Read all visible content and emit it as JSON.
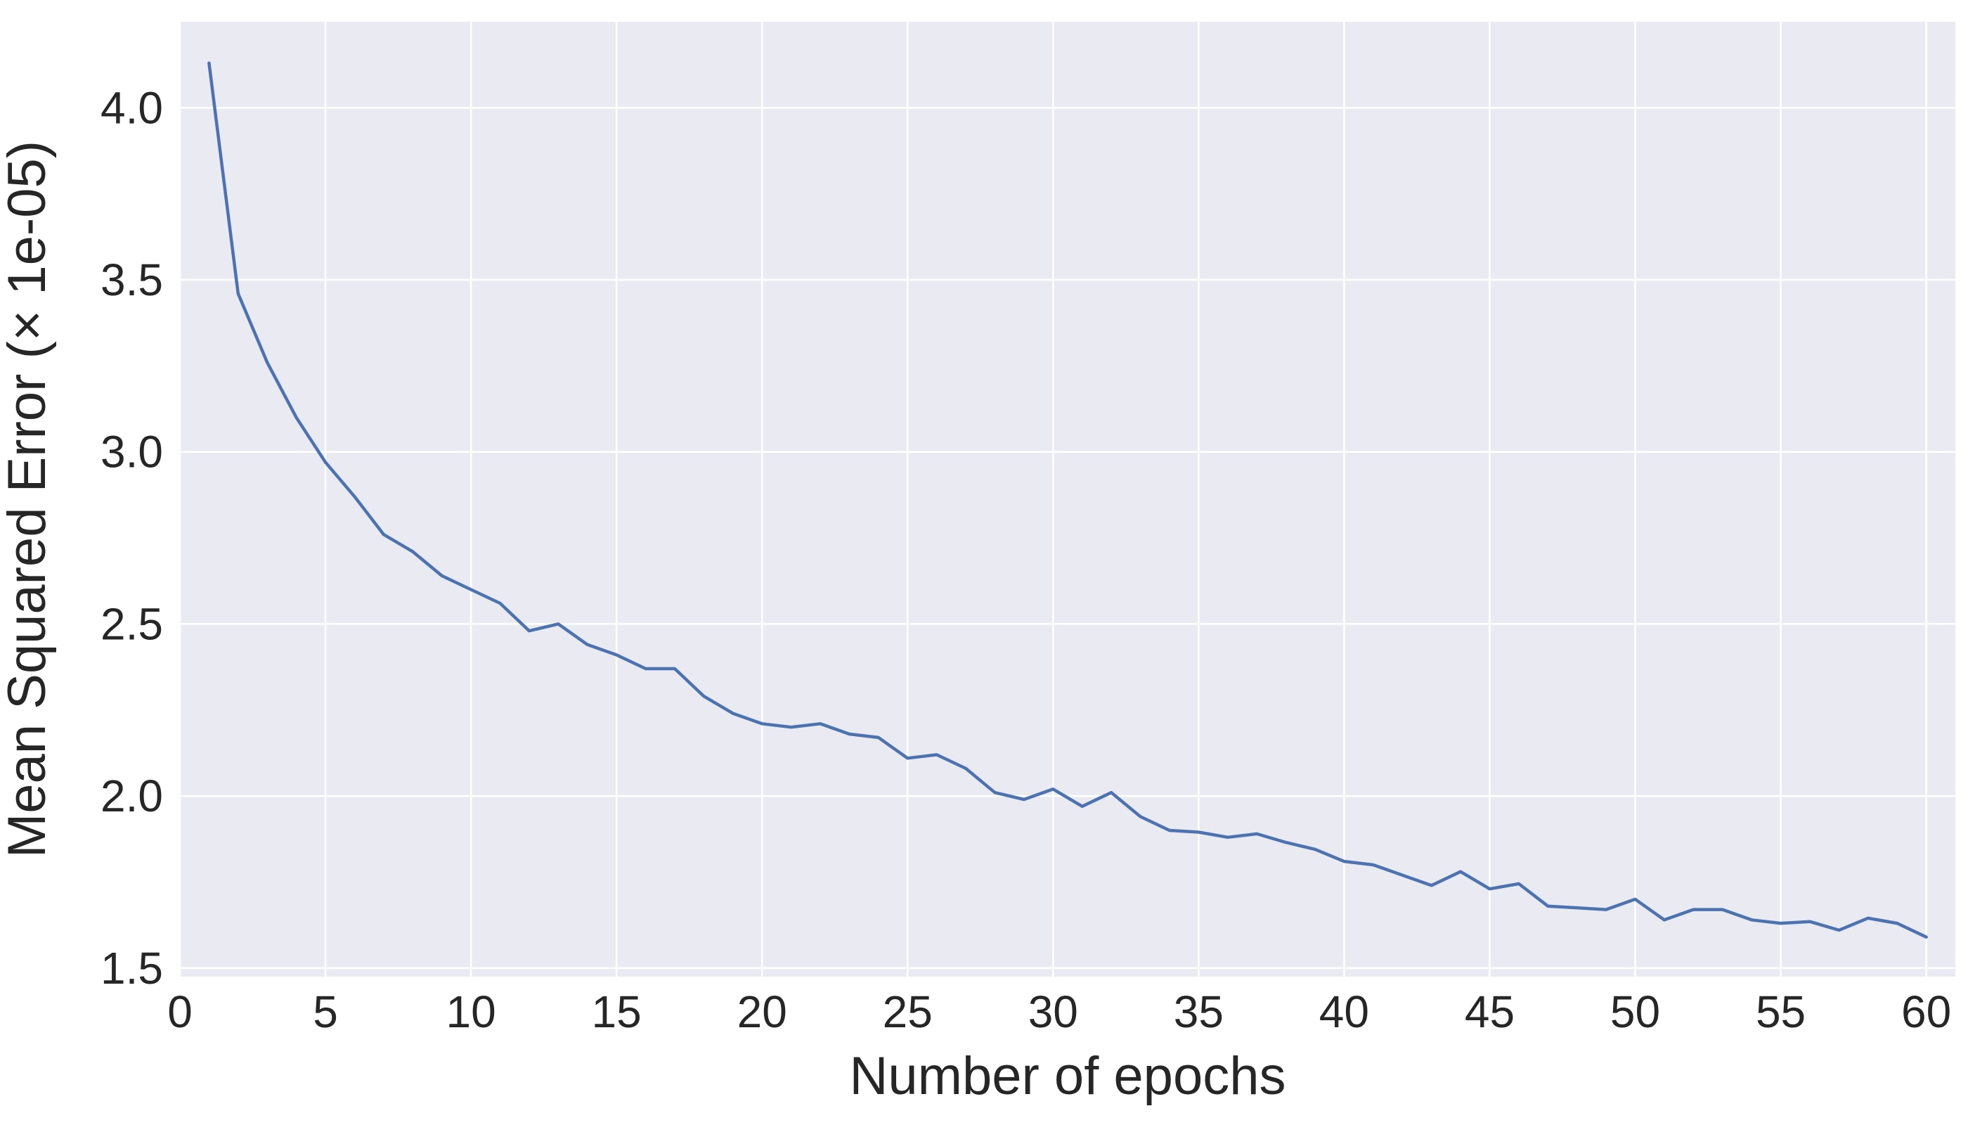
{
  "chart_data": {
    "type": "line",
    "title": "",
    "xlabel": "Number of epochs",
    "ylabel": "Mean Squared Error (× 1e-05)",
    "xlim": [
      0,
      61
    ],
    "ylim": [
      1.475,
      4.25
    ],
    "xticks": [
      0,
      5,
      10,
      15,
      20,
      25,
      30,
      35,
      40,
      45,
      50,
      55,
      60
    ],
    "yticks": [
      1.5,
      2.0,
      2.5,
      3.0,
      3.5,
      4.0
    ],
    "xtick_labels": [
      "0",
      "5",
      "10",
      "15",
      "20",
      "25",
      "30",
      "35",
      "40",
      "45",
      "50",
      "55",
      "60"
    ],
    "ytick_labels": [
      "1.5",
      "2.0",
      "2.5",
      "3.0",
      "3.5",
      "4.0"
    ],
    "grid": true,
    "background_color": "#EAEAF2",
    "grid_color": "#FFFFFF",
    "series": [
      {
        "color": "#4C72B0",
        "x": [
          1,
          2,
          3,
          4,
          5,
          6,
          7,
          8,
          9,
          10,
          11,
          12,
          13,
          14,
          15,
          16,
          17,
          18,
          19,
          20,
          21,
          22,
          23,
          24,
          25,
          26,
          27,
          28,
          29,
          30,
          31,
          32,
          33,
          34,
          35,
          36,
          37,
          38,
          39,
          40,
          41,
          42,
          43,
          44,
          45,
          46,
          47,
          48,
          49,
          50,
          51,
          52,
          53,
          54,
          55,
          56,
          57,
          58,
          59,
          60
        ],
        "values": [
          4.13,
          3.46,
          3.26,
          3.1,
          2.97,
          2.87,
          2.76,
          2.71,
          2.64,
          2.6,
          2.56,
          2.48,
          2.5,
          2.44,
          2.41,
          2.37,
          2.37,
          2.29,
          2.24,
          2.21,
          2.2,
          2.21,
          2.18,
          2.17,
          2.11,
          2.12,
          2.08,
          2.01,
          1.99,
          2.02,
          1.97,
          2.01,
          1.94,
          1.9,
          1.895,
          1.88,
          1.89,
          1.865,
          1.845,
          1.81,
          1.8,
          1.77,
          1.74,
          1.78,
          1.73,
          1.745,
          1.68,
          1.675,
          1.67,
          1.7,
          1.64,
          1.67,
          1.67,
          1.64,
          1.63,
          1.635,
          1.61,
          1.645,
          1.63,
          1.59
        ]
      }
    ]
  }
}
